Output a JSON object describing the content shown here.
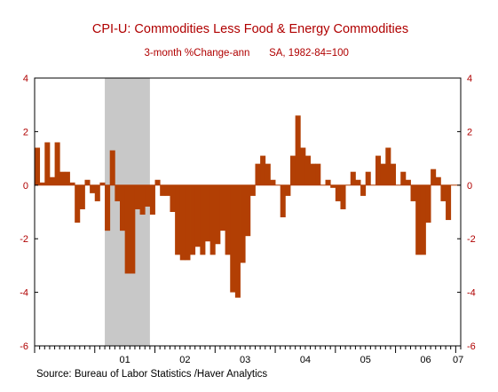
{
  "chart_data": {
    "type": "bar",
    "title": "CPI-U: Commodities Less Food & Energy Commodities",
    "subtitle_left": "3-month %Change-ann",
    "subtitle_right": "SA, 1982-84=100",
    "source": "Source:  Bureau of Labor Statistics /Haver Analytics",
    "ylim": [
      -6,
      4
    ],
    "y_ticks": [
      4,
      2,
      0,
      -2,
      -4,
      -6
    ],
    "y_tick_labels": [
      "4",
      "2",
      "0",
      "-2",
      "-4",
      "-6"
    ],
    "x_tick_labels": [
      "01",
      "02",
      "03",
      "04",
      "05",
      "06",
      "07"
    ],
    "recession_shading": {
      "start": "2001-03",
      "end": "2001-11"
    },
    "start_month": "2000-01",
    "values": [
      1.4,
      0.1,
      1.6,
      0.3,
      1.6,
      0.5,
      0.5,
      0.1,
      -1.4,
      -0.9,
      0.2,
      -0.3,
      -0.6,
      0.1,
      -1.7,
      1.3,
      -0.6,
      -1.7,
      -3.3,
      -3.3,
      -0.9,
      -1.1,
      -0.8,
      -1.1,
      0.2,
      -0.4,
      -0.4,
      -1.0,
      -2.6,
      -2.8,
      -2.8,
      -2.6,
      -2.3,
      -2.6,
      -2.1,
      -2.6,
      -2.2,
      -1.7,
      -2.6,
      -4.0,
      -4.2,
      -2.9,
      -1.9,
      -0.4,
      0.8,
      1.1,
      0.8,
      0.2,
      0.0,
      -1.2,
      -0.4,
      1.1,
      2.6,
      1.4,
      1.1,
      0.8,
      0.8,
      0.0,
      0.2,
      -0.1,
      -0.6,
      -0.9,
      0.0,
      0.5,
      0.2,
      -0.4,
      0.5,
      0.0,
      1.1,
      0.8,
      1.4,
      0.8,
      0.0,
      0.5,
      0.2,
      -0.6,
      -2.6,
      -2.6,
      -1.4,
      0.6,
      0.3,
      -0.6,
      -1.3,
      0.0,
      0.0
    ],
    "colors": {
      "bar": "#b23f04",
      "recession": "#c8c8c8",
      "title": "#b00000",
      "axis": "#000000"
    }
  }
}
